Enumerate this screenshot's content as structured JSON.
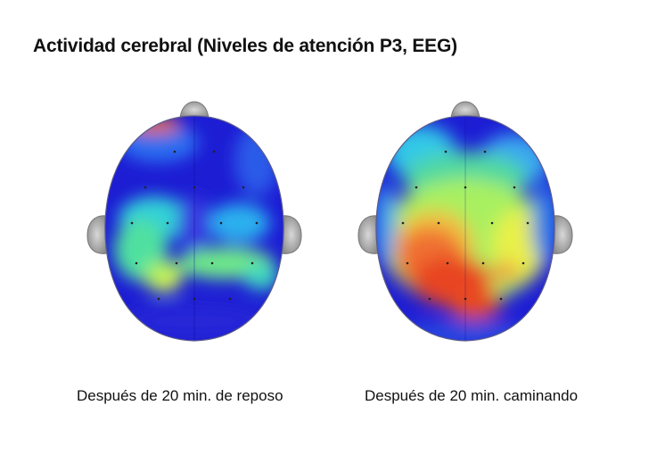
{
  "title": "Actividad cerebral (Niveles de atención P3, EEG)",
  "maps": [
    {
      "caption": "Después de 20 min. de reposo"
    },
    {
      "caption": "Después de 20 min. caminando"
    }
  ],
  "colors": {
    "low": "#1a1ad0",
    "mid_low": "#27c6ee",
    "mid": "#8ef05a",
    "mid_high": "#f3f040",
    "high": "#e8401a"
  }
}
